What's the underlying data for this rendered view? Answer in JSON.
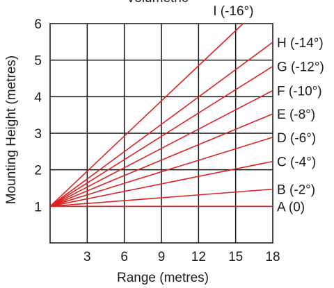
{
  "chart_data": {
    "type": "line",
    "title": "Volumetric",
    "xlabel": "Range (metres)",
    "ylabel": "Mounting Height (metres)",
    "xlim": [
      0,
      18
    ],
    "ylim": [
      0,
      6
    ],
    "x_ticks": [
      "3",
      "6",
      "9",
      "12",
      "15",
      "18"
    ],
    "y_ticks": [
      "1",
      "2",
      "3",
      "4",
      "5",
      "6"
    ],
    "grid": true,
    "line_color": "#e02020",
    "series": [
      {
        "name": "A (0)",
        "x": [
          0,
          18
        ],
        "y": [
          1,
          1.0
        ]
      },
      {
        "name": "B (-2°)",
        "x": [
          0,
          18
        ],
        "y": [
          1,
          1.47
        ]
      },
      {
        "name": "C (-4°)",
        "x": [
          0,
          18
        ],
        "y": [
          1,
          2.23
        ]
      },
      {
        "name": "D (-6°)",
        "x": [
          0,
          18
        ],
        "y": [
          1,
          2.89
        ]
      },
      {
        "name": "E (-8°)",
        "x": [
          0,
          18
        ],
        "y": [
          1,
          3.53
        ]
      },
      {
        "name": "F (-10°)",
        "x": [
          0,
          18
        ],
        "y": [
          1,
          4.17
        ]
      },
      {
        "name": "G (-12°)",
        "x": [
          0,
          18
        ],
        "y": [
          1,
          4.83
        ]
      },
      {
        "name": "H (-14°)",
        "x": [
          0,
          18
        ],
        "y": [
          1,
          5.49
        ]
      },
      {
        "name": "I (-16°)",
        "x": [
          0,
          15.6
        ],
        "y": [
          1,
          6.0
        ]
      }
    ]
  }
}
